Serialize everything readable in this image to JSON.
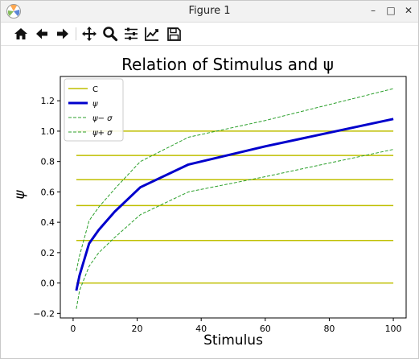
{
  "window": {
    "title": "Figure 1",
    "controls": [
      "–",
      "□",
      "✕"
    ]
  },
  "toolbar": {
    "items": [
      "home-icon",
      "back-arrow-icon",
      "forward-arrow-icon",
      "pan-move-icon",
      "zoom-magnifier-icon",
      "configure-subplots-icon",
      "edit-axis-curves-icon",
      "save-floppy-icon"
    ]
  },
  "chart_data": {
    "type": "line",
    "title": "Relation of Stimulus and ψ",
    "xlabel": "Stimulus",
    "ylabel": "ψ",
    "xlim": [
      -4,
      104
    ],
    "ylim": [
      -0.23,
      1.36
    ],
    "xticks": [
      0,
      20,
      40,
      60,
      80,
      100
    ],
    "xtick_labels": [
      "0",
      "20",
      "40",
      "60",
      "80",
      "100"
    ],
    "yticks": [
      -0.2,
      0.0,
      0.2,
      0.4,
      0.6,
      0.8,
      1.0,
      1.2
    ],
    "ytick_labels": [
      "−0.2",
      "0.0",
      "0.2",
      "0.4",
      "0.6",
      "0.8",
      "1.0",
      "1.2"
    ],
    "grid": false,
    "legend_position": "upper-left",
    "hlines": {
      "name": "C",
      "color": "#bfbf00",
      "y": [
        0.0,
        0.28,
        0.51,
        0.68,
        0.84,
        1.0
      ],
      "x_range": [
        1,
        100
      ]
    },
    "series": [
      {
        "name": "ψ",
        "color": "#0000cc",
        "style": "solid",
        "width": 3,
        "x": [
          1,
          2,
          5,
          8,
          13,
          21,
          36,
          60,
          100
        ],
        "y": [
          -0.05,
          0.05,
          0.26,
          0.35,
          0.47,
          0.63,
          0.78,
          0.9,
          1.08
        ]
      },
      {
        "name": "ψ− σ",
        "color": "#2ca02c",
        "style": "dashed",
        "width": 1,
        "x": [
          1,
          2,
          5,
          8,
          13,
          21,
          36,
          60,
          100
        ],
        "y": [
          -0.17,
          -0.05,
          0.11,
          0.2,
          0.3,
          0.45,
          0.6,
          0.7,
          0.88
        ]
      },
      {
        "name": "ψ+ σ",
        "color": "#2ca02c",
        "style": "dashed",
        "width": 1,
        "x": [
          1,
          2,
          5,
          8,
          13,
          21,
          36,
          60,
          100
        ],
        "y": [
          0.08,
          0.18,
          0.41,
          0.5,
          0.62,
          0.8,
          0.96,
          1.07,
          1.28
        ]
      }
    ]
  }
}
